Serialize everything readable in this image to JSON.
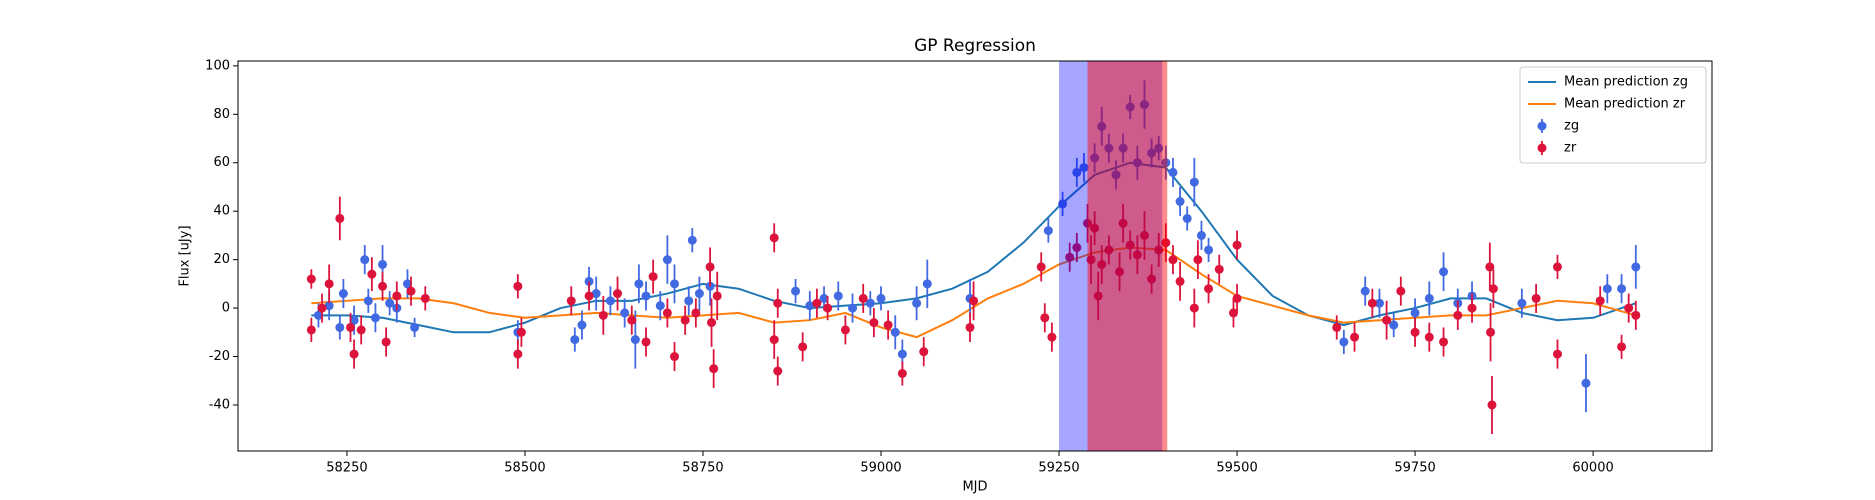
{
  "chart_data": {
    "type": "errorbar",
    "title": "GP Regression",
    "x_label": "MJD",
    "y_label": "Flux [uJy]",
    "xlim": [
      58097,
      60167
    ],
    "ylim": [
      -59,
      102
    ],
    "xticks": [
      58250,
      58500,
      58750,
      59000,
      59250,
      59500,
      59750,
      60000
    ],
    "yticks": [
      -40,
      -20,
      0,
      20,
      40,
      60,
      80,
      100
    ],
    "legend": "upper right",
    "spans": [
      {
        "start": 59250,
        "end": 59395,
        "color": "#0000ff",
        "alpha": 0.35
      },
      {
        "start": 59290,
        "end": 59402,
        "color": "#ff0000",
        "alpha": 0.45
      }
    ],
    "series": [
      {
        "name": "Mean prediction zg",
        "kind": "line",
        "color": "#1f77b4",
        "x": [
          58200,
          58250,
          58300,
          58350,
          58400,
          58450,
          58500,
          58550,
          58600,
          58650,
          58700,
          58750,
          58800,
          58850,
          58900,
          58950,
          59000,
          59050,
          59100,
          59150,
          59200,
          59250,
          59300,
          59350,
          59400,
          59450,
          59500,
          59550,
          59600,
          59650,
          59700,
          59750,
          59800,
          59850,
          59900,
          59950,
          60000,
          60060
        ],
        "values": [
          -3,
          -3,
          -4,
          -7,
          -10,
          -10,
          -6,
          0,
          3,
          3,
          6,
          10,
          8,
          3,
          0,
          1,
          2,
          4,
          8,
          15,
          27,
          42,
          55,
          60,
          58,
          40,
          20,
          5,
          -3,
          -7,
          -3,
          0,
          4,
          4,
          -2,
          -5,
          -4,
          2
        ]
      },
      {
        "name": "Mean prediction zr",
        "kind": "line",
        "color": "#ff7f0e",
        "x": [
          58200,
          58250,
          58300,
          58350,
          58400,
          58450,
          58500,
          58550,
          58600,
          58650,
          58700,
          58750,
          58800,
          58850,
          58900,
          58950,
          59000,
          59050,
          59100,
          59150,
          59200,
          59250,
          59300,
          59350,
          59400,
          59450,
          59500,
          59550,
          59600,
          59650,
          59700,
          59750,
          59800,
          59850,
          59900,
          59950,
          60000,
          60060
        ],
        "values": [
          2,
          3,
          4,
          4,
          2,
          -2,
          -4,
          -3,
          -2,
          -3,
          -4,
          -3,
          -2,
          -6,
          -5,
          -2,
          -8,
          -12,
          -5,
          4,
          10,
          18,
          23,
          25,
          24,
          14,
          5,
          1,
          -3,
          -6,
          -5,
          -4,
          -3,
          -3,
          0,
          3,
          2,
          -3
        ]
      },
      {
        "name": "zg",
        "kind": "errorbar",
        "color": "#4169e1",
        "x": [
          58210,
          58225,
          58240,
          58245,
          58260,
          58275,
          58280,
          58290,
          58300,
          58310,
          58320,
          58335,
          58345,
          58490,
          58570,
          58580,
          58590,
          58600,
          58620,
          58640,
          58655,
          58660,
          58670,
          58690,
          58700,
          58710,
          58730,
          58735,
          58745,
          58760,
          58880,
          58900,
          58920,
          58940,
          58960,
          58985,
          59000,
          59020,
          59030,
          59050,
          59065,
          59125,
          59235,
          59255,
          59275,
          59285,
          59300,
          59310,
          59320,
          59330,
          59340,
          59350,
          59360,
          59370,
          59380,
          59390,
          59400,
          59410,
          59420,
          59430,
          59440,
          59450,
          59460,
          59650,
          59680,
          59700,
          59720,
          59750,
          59770,
          59790,
          59810,
          59830,
          59900,
          59990,
          60020,
          60040,
          60060
        ],
        "values": [
          -3,
          1,
          -8,
          6,
          -5,
          20,
          3,
          -4,
          18,
          2,
          0,
          10,
          -8,
          -10,
          -13,
          -7,
          11,
          6,
          3,
          -2,
          -13,
          10,
          5,
          1,
          20,
          10,
          3,
          28,
          6,
          9,
          7,
          1,
          4,
          5,
          0,
          2,
          4,
          -10,
          -19,
          2,
          10,
          4,
          32,
          43,
          56,
          58,
          62,
          75,
          66,
          55,
          66,
          83,
          60,
          84,
          64,
          66,
          60,
          56,
          44,
          37,
          52,
          30,
          24,
          -14,
          7,
          2,
          -7,
          -2,
          4,
          15,
          2,
          5,
          2,
          -31,
          8,
          8,
          17
        ],
        "errors": [
          5,
          6,
          5,
          6,
          6,
          6,
          5,
          6,
          8,
          5,
          6,
          6,
          4,
          5,
          5,
          6,
          6,
          7,
          6,
          6,
          12,
          8,
          6,
          6,
          10,
          8,
          6,
          5,
          7,
          8,
          5,
          6,
          5,
          6,
          6,
          5,
          5,
          7,
          6,
          7,
          10,
          8,
          5,
          5,
          6,
          6,
          6,
          8,
          6,
          6,
          6,
          5,
          7,
          10,
          6,
          5,
          7,
          6,
          6,
          5,
          10,
          6,
          5,
          5,
          6,
          6,
          5,
          6,
          7,
          8,
          6,
          6,
          6,
          12,
          6,
          6,
          9
        ]
      },
      {
        "name": "zr",
        "kind": "errorbar",
        "color": "#dc143c",
        "x": [
          58200,
          58200,
          58215,
          58225,
          58240,
          58255,
          58260,
          58270,
          58285,
          58300,
          58305,
          58320,
          58340,
          58360,
          58490,
          58490,
          58495,
          58565,
          58590,
          58610,
          58630,
          58650,
          58670,
          58680,
          58700,
          58710,
          58725,
          58740,
          58760,
          58762,
          58765,
          58770,
          58850,
          58850,
          58855,
          58855,
          58890,
          58910,
          58925,
          58950,
          58975,
          58990,
          59010,
          59030,
          59060,
          59125,
          59130,
          59225,
          59230,
          59240,
          59265,
          59275,
          59290,
          59295,
          59300,
          59305,
          59310,
          59320,
          59335,
          59340,
          59350,
          59360,
          59370,
          59380,
          59390,
          59400,
          59410,
          59420,
          59440,
          59445,
          59460,
          59475,
          59495,
          59500,
          59500,
          59640,
          59665,
          59690,
          59710,
          59730,
          59750,
          59770,
          59790,
          59810,
          59830,
          59855,
          59856,
          59858,
          59860,
          59920,
          59950,
          59950,
          60010,
          60040,
          60050,
          60060
        ],
        "values": [
          12,
          -9,
          0,
          10,
          37,
          -8,
          -19,
          -9,
          14,
          9,
          -14,
          5,
          7,
          4,
          9,
          -19,
          -10,
          3,
          5,
          -3,
          6,
          -5,
          -14,
          13,
          -2,
          -20,
          -5,
          -2,
          17,
          -6,
          -25,
          5,
          29,
          -13,
          -26,
          2,
          -16,
          2,
          0,
          -9,
          4,
          -6,
          -7,
          -27,
          -18,
          -8,
          3,
          17,
          -4,
          -12,
          21,
          25,
          35,
          20,
          33,
          5,
          18,
          24,
          15,
          35,
          26,
          22,
          30,
          12,
          24,
          27,
          20,
          11,
          0,
          20,
          8,
          16,
          -2,
          26,
          4,
          -8,
          -12,
          2,
          -5,
          7,
          -10,
          -12,
          -14,
          -3,
          0,
          17,
          -10,
          -40,
          8,
          4,
          17,
          -19,
          3,
          -16,
          0,
          -3
        ],
        "errors": [
          4,
          5,
          6,
          8,
          9,
          6,
          6,
          6,
          7,
          6,
          6,
          6,
          6,
          5,
          5,
          6,
          6,
          6,
          6,
          8,
          7,
          6,
          6,
          7,
          6,
          6,
          6,
          6,
          8,
          10,
          8,
          10,
          6,
          8,
          6,
          6,
          6,
          6,
          5,
          6,
          6,
          6,
          6,
          5,
          6,
          6,
          8,
          6,
          6,
          6,
          6,
          6,
          8,
          10,
          7,
          10,
          8,
          6,
          8,
          8,
          6,
          8,
          10,
          6,
          7,
          8,
          6,
          8,
          8,
          8,
          6,
          6,
          6,
          6,
          6,
          5,
          6,
          6,
          8,
          6,
          6,
          6,
          6,
          6,
          6,
          10,
          12,
          12,
          8,
          6,
          5,
          6,
          6,
          5,
          6,
          6
        ]
      }
    ]
  }
}
